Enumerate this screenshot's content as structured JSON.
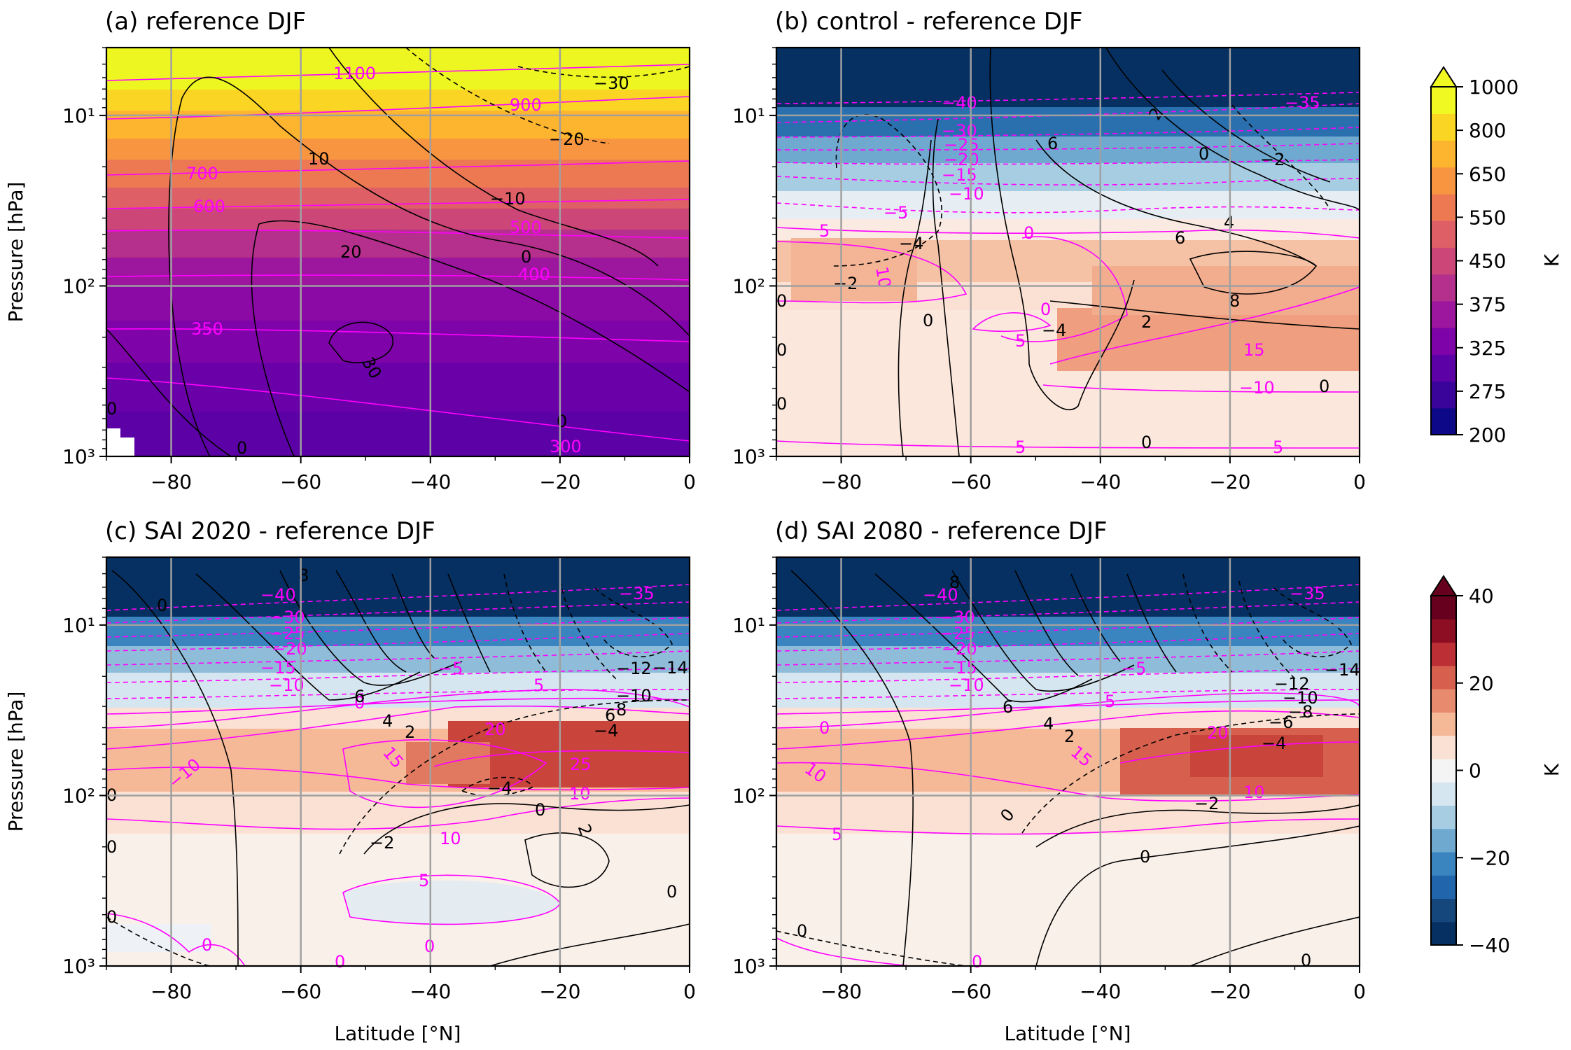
{
  "figure": {
    "colorbar_top": {
      "ticks": [
        "200",
        "275",
        "325",
        "375",
        "450",
        "550",
        "650",
        "800",
        "1000"
      ],
      "label": "K",
      "colors": [
        "#0d0887",
        "#3a049a",
        "#5c01a6",
        "#7e03a8",
        "#9c179e",
        "#b52f8c",
        "#cc4778",
        "#de5f65",
        "#ed7953",
        "#f89540",
        "#fdb42f",
        "#fbd524",
        "#f0f921"
      ],
      "extend": "max"
    },
    "colorbar_bottom": {
      "ticks": [
        "-40",
        "-20",
        "0",
        "20",
        "40"
      ],
      "label": "K",
      "colors": [
        "#053061",
        "#15467c",
        "#2166ac",
        "#3a84bf",
        "#6fa9d0",
        "#a7cde3",
        "#d6e6f0",
        "#f4f4f4",
        "#fbe1d4",
        "#f6b998",
        "#e78a6e",
        "#d6604d",
        "#bb2f35",
        "#8d0d22",
        "#67001f"
      ],
      "extend": "max"
    }
  },
  "chart_data": [
    {
      "type": "heatmap",
      "title": "(a) reference DJF",
      "xlabel": "",
      "ylabel": "Pressure [hPa]",
      "xlim": [
        -90,
        0
      ],
      "ylim": [
        1000,
        4
      ],
      "yscale": "log",
      "xticks": [
        "−80",
        "−60",
        "−40",
        "−20",
        "0"
      ],
      "yticks": [
        "10¹",
        "10²",
        "10³"
      ],
      "grid": true,
      "field_levels_top_to_bottom": [
        1000,
        900,
        800,
        700,
        650,
        600,
        550,
        500,
        450,
        400,
        375,
        350,
        325,
        300,
        275
      ],
      "magenta_contour_labels": [
        "1100",
        "900",
        "700",
        "600",
        "500",
        "400",
        "350",
        "300"
      ],
      "black_contour_labels": [
        "−30",
        "−20",
        "−10",
        "0",
        "10",
        "20",
        "30",
        "0",
        "0",
        "0"
      ]
    },
    {
      "type": "heatmap",
      "title": "(b) control - reference DJF",
      "xlabel": "",
      "ylabel": "",
      "xlim": [
        -90,
        0
      ],
      "ylim": [
        1000,
        4
      ],
      "yscale": "log",
      "xticks": [
        "−80",
        "−60",
        "−40",
        "−20",
        "0"
      ],
      "yticks": [
        "10¹",
        "10²",
        "10³"
      ],
      "grid": true,
      "anomaly_levels_top_to_bottom": [
        -38,
        -24,
        -12,
        -4,
        2,
        6,
        10,
        14,
        18
      ],
      "magenta_contour_labels": [
        "−40",
        "−35",
        "−30",
        "−25",
        "−20",
        "−15",
        "−10",
        "−5",
        "5",
        "0",
        "10",
        "0",
        "5",
        "15",
        "−10",
        "5",
        "5"
      ],
      "black_contour_labels": [
        "6",
        "2",
        "0",
        "−2",
        "4",
        "6",
        "−4",
        "−2",
        "8",
        "2",
        "−4",
        "0",
        "0",
        "0",
        "0",
        "0",
        "0"
      ]
    },
    {
      "type": "heatmap",
      "title": "(c) SAI 2020 - reference DJF",
      "xlabel": "Latitude [°N]",
      "ylabel": "Pressure [hPa]",
      "xlim": [
        -90,
        0
      ],
      "ylim": [
        1000,
        4
      ],
      "yscale": "log",
      "xticks": [
        "−80",
        "−60",
        "−40",
        "−20",
        "0"
      ],
      "yticks": [
        "10¹",
        "10²",
        "10³"
      ],
      "grid": true,
      "anomaly_levels_top_to_bottom": [
        -38,
        -24,
        -14,
        -6,
        2,
        10,
        18,
        26,
        4,
        -2
      ],
      "magenta_contour_labels": [
        "−40",
        "−35",
        "−30",
        "−25",
        "−20",
        "−15",
        "−10",
        "−5",
        "0",
        "5",
        "20",
        "25",
        "15",
        "10",
        "−10",
        "10",
        "5",
        "0",
        "0",
        "0"
      ],
      "black_contour_labels": [
        "8",
        "0",
        "6",
        "4",
        "2",
        "−12",
        "−14",
        "−10",
        "8",
        "6",
        "−4",
        "−4",
        "0",
        "2",
        "−2",
        "0",
        "0",
        "0",
        "0"
      ]
    },
    {
      "type": "heatmap",
      "title": "(d) SAI 2080 - reference DJF",
      "xlabel": "Latitude [°N]",
      "ylabel": "",
      "xlim": [
        -90,
        0
      ],
      "ylim": [
        1000,
        4
      ],
      "yscale": "log",
      "xticks": [
        "−80",
        "−60",
        "−40",
        "−20",
        "0"
      ],
      "yticks": [
        "10¹",
        "10²",
        "10³"
      ],
      "grid": true,
      "anomaly_levels_top_to_bottom": [
        -38,
        -24,
        -14,
        -6,
        2,
        10,
        18,
        26,
        6,
        2
      ],
      "magenta_contour_labels": [
        "−40",
        "−35",
        "−30",
        "−25",
        "−20",
        "−15",
        "−10",
        "−5",
        "5",
        "0",
        "20",
        "15",
        "10",
        "10",
        "5",
        "0"
      ],
      "black_contour_labels": [
        "8",
        "6",
        "4",
        "2",
        "−14",
        "−12",
        "−10",
        "−8",
        "−6",
        "−4",
        "−2",
        "0",
        "0",
        "0",
        "0"
      ]
    }
  ]
}
